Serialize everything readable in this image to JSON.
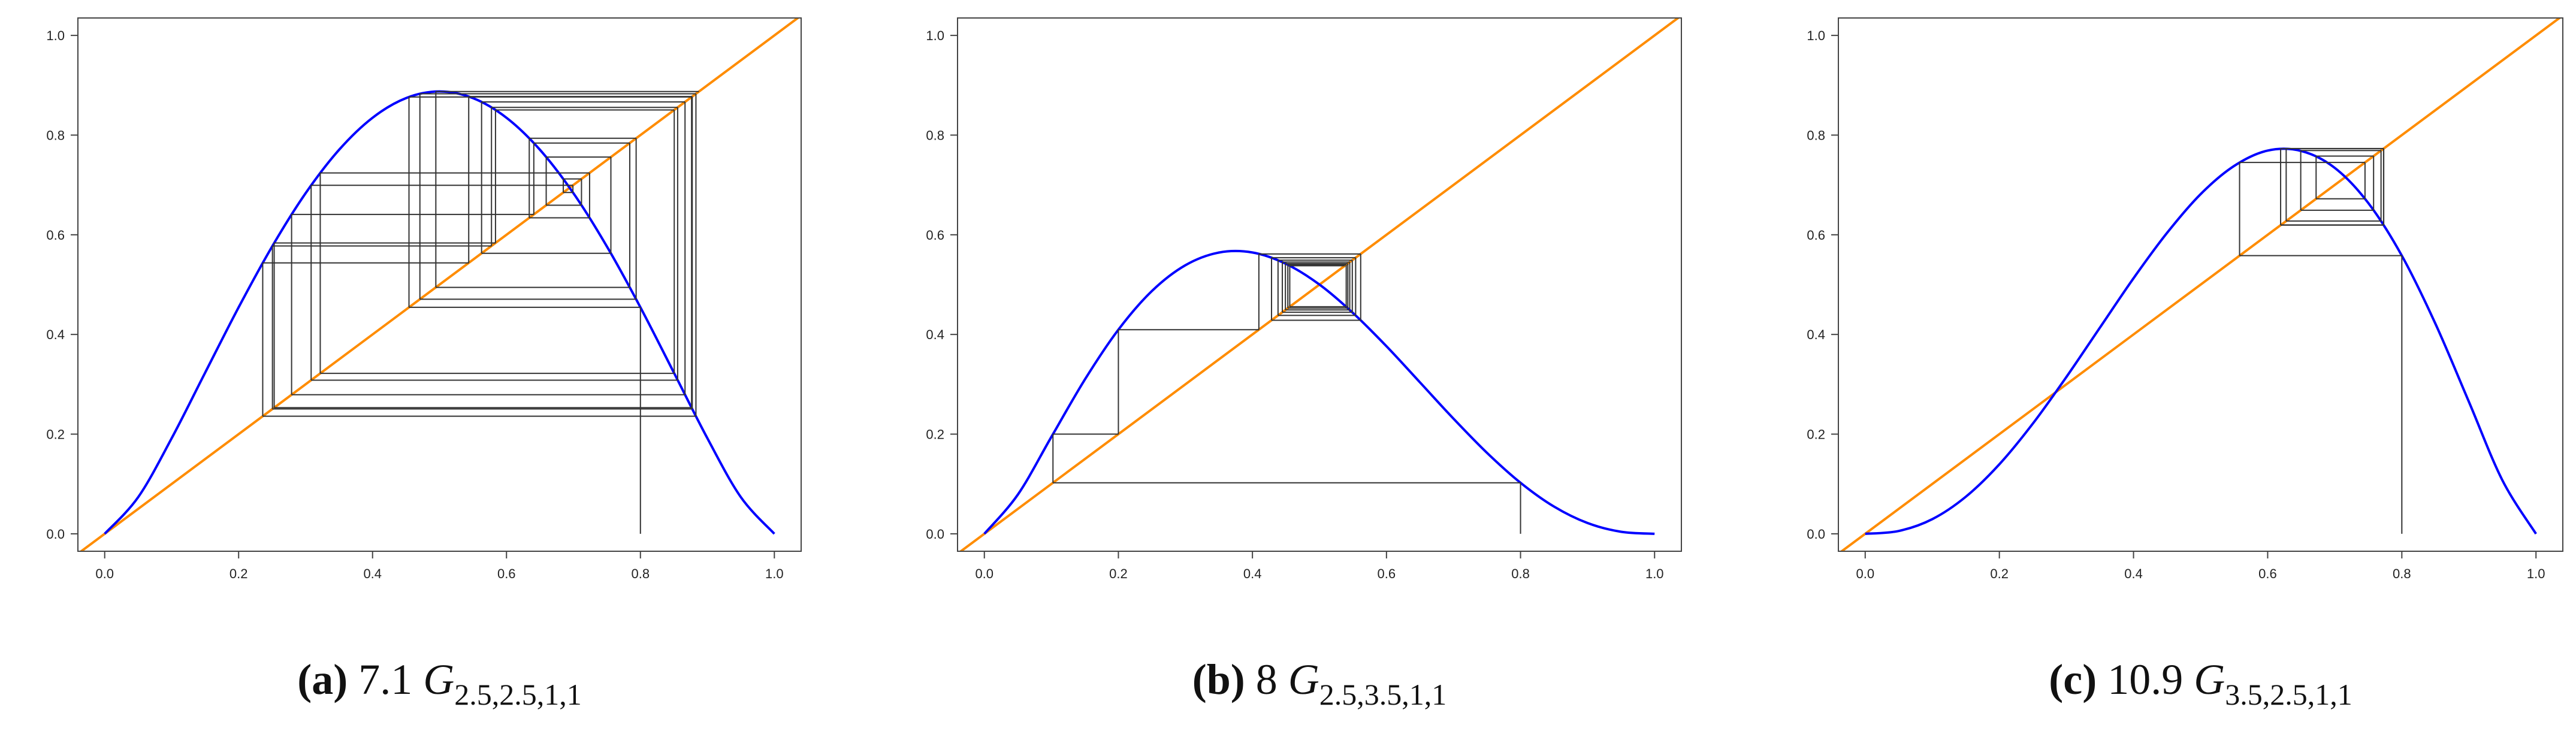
{
  "chart_data": [
    {
      "type": "cobweb",
      "caption": {
        "label": "(a)",
        "text": "7.1",
        "symbol": "G",
        "subscript": "2.5,2.5,1,1"
      },
      "xlim": [
        -0.04,
        1.04
      ],
      "ylim": [
        -0.035,
        1.035
      ],
      "xticks": [
        {
          "value": 0,
          "label": "0.0"
        },
        0.2,
        0.4,
        0.6,
        0.8,
        {
          "value": 1,
          "label": "1.0"
        }
      ],
      "yticks": [
        {
          "value": 0,
          "label": "0.0"
        },
        0.2,
        0.4,
        0.6,
        0.8,
        {
          "value": 1,
          "label": "1.0"
        }
      ],
      "diagonal_color": "#ff8c00",
      "curve": {
        "color": "#0000ff",
        "x": [
          0,
          0.05,
          0.1,
          0.15,
          0.2,
          0.25,
          0.3,
          0.35,
          0.4,
          0.45,
          0.5,
          0.55,
          0.6,
          0.65,
          0.7,
          0.75,
          0.8,
          0.85,
          0.9,
          0.95,
          1
        ],
        "values": [
          0,
          0.0735,
          0.1917,
          0.3233,
          0.4544,
          0.5764,
          0.6833,
          0.7705,
          0.8348,
          0.8742,
          0.8875,
          0.8742,
          0.8348,
          0.7705,
          0.6833,
          0.5764,
          0.4544,
          0.3233,
          0.1917,
          0.0735,
          0
        ]
      },
      "orbit": {
        "color": "#333333",
        "values": [
          0.8,
          0.4544,
          0.8764,
          0.2531,
          0.5836,
          0.8505,
          0.3219,
          0.7241,
          0.634,
          0.7936,
          0.4707,
          0.8829,
          0.236,
          0.5436,
          0.8774,
          0.2505,
          0.5776,
          0.8556,
          0.3083,
          0.6992,
          0.6848,
          0.712,
          0.6593,
          0.7559,
          0.5628,
          0.8666,
          0.2791,
          0.6408,
          0.7841,
          0.4945,
          0.8874
        ]
      }
    },
    {
      "type": "cobweb",
      "caption": {
        "label": "(b)",
        "text": "8",
        "symbol": "G",
        "subscript": "2.5,3.5,1,1"
      },
      "xlim": [
        -0.04,
        1.04
      ],
      "ylim": [
        -0.035,
        1.035
      ],
      "xticks": [
        {
          "value": 0,
          "label": "0.0"
        },
        0.2,
        0.4,
        0.6,
        0.8,
        {
          "value": 1,
          "label": "1.0"
        }
      ],
      "yticks": [
        {
          "value": 0,
          "label": "0.0"
        },
        0.2,
        0.4,
        0.6,
        0.8,
        {
          "value": 1,
          "label": "1.0"
        }
      ],
      "diagonal_color": "#ff8c00",
      "curve": {
        "color": "#0000ff",
        "x": [
          0,
          0.05,
          0.1,
          0.15,
          0.2,
          0.25,
          0.3,
          0.35,
          0.4,
          0.45,
          0.5,
          0.55,
          0.6,
          0.65,
          0.7,
          0.75,
          0.8,
          0.85,
          0.9,
          0.95,
          1
        ],
        "values": [
          0,
          0.0787,
          0.1944,
          0.3096,
          0.4096,
          0.4871,
          0.5389,
          0.5643,
          0.5645,
          0.5417,
          0.5001,
          0.4431,
          0.3763,
          0.3038,
          0.231,
          0.1624,
          0.1024,
          0.0546,
          0.0216,
          0.0041,
          0
        ]
      },
      "orbit": {
        "color": "#333333",
        "values": [
          0.8,
          0.1024,
          0.2,
          0.4096,
          0.5615,
          0.4285,
          0.554,
          0.4382,
          0.549,
          0.4446,
          0.5452,
          0.4492,
          0.5423,
          0.4528,
          0.5399,
          0.4557,
          0.5379
        ]
      }
    },
    {
      "type": "cobweb",
      "caption": {
        "label": "(c)",
        "text": "10.9",
        "symbol": "G",
        "subscript": "3.5,2.5,1,1"
      },
      "xlim": [
        -0.04,
        1.04
      ],
      "ylim": [
        -0.035,
        1.035
      ],
      "xticks": [
        {
          "value": 0,
          "label": "0.0"
        },
        0.2,
        0.4,
        0.6,
        0.8,
        {
          "value": 1,
          "label": "1.0"
        }
      ],
      "yticks": [
        {
          "value": 0,
          "label": "0.0"
        },
        0.2,
        0.4,
        0.6,
        0.8,
        {
          "value": 1,
          "label": "1.0"
        }
      ],
      "diagonal_color": "#ff8c00",
      "curve": {
        "color": "#0000ff",
        "x": [
          0,
          0.05,
          0.1,
          0.15,
          0.2,
          0.25,
          0.3,
          0.35,
          0.4,
          0.45,
          0.5,
          0.55,
          0.6,
          0.65,
          0.7,
          0.75,
          0.8,
          0.85,
          0.9,
          0.95,
          1
        ],
        "values": [
          0,
          0.0057,
          0.0294,
          0.0744,
          0.1395,
          0.2213,
          0.3148,
          0.4139,
          0.5127,
          0.6038,
          0.6815,
          0.7381,
          0.7689,
          0.7681,
          0.7342,
          0.6637,
          0.5581,
          0.4217,
          0.2649,
          0.1072,
          0
        ]
      },
      "orbit": {
        "color": "#333333",
        "values": [
          0.8,
          0.5581,
          0.7451,
          0.6722,
          0.7579,
          0.6493,
          0.769,
          0.6276,
          0.773,
          0.6193,
          0.7728,
          0.6198
        ]
      }
    }
  ]
}
